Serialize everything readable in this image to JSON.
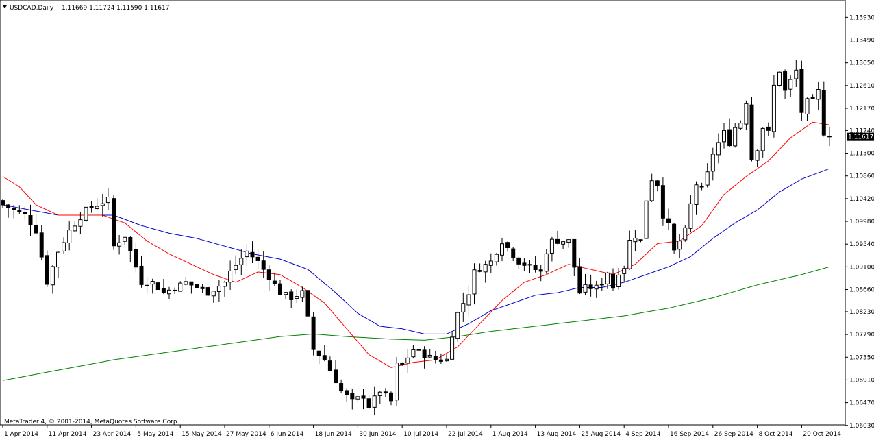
{
  "header": {
    "symbol": "USDCAD,Daily",
    "ohlc": "1.11669 1.11724 1.11590 1.11617",
    "triangle_icon": "triangle-down-icon"
  },
  "footer": {
    "copyright": "MetaTrader 4, © 2001-2014, MetaQuotes Software Corp."
  },
  "colors": {
    "background": "#ffffff",
    "ma_fast": "#ff0000",
    "ma_mid": "#0000cc",
    "ma_slow": "#008000",
    "bull_body": "#ffffff",
    "bear_body": "#000000",
    "price_tag_bg": "#000000",
    "price_tag_fg": "#ffffff"
  },
  "chart_data": {
    "type": "candlestick",
    "symbol": "USDCAD",
    "timeframe": "Daily",
    "current_price": "1.11617",
    "ylim": [
      1.0604,
      1.142
    ],
    "yticks": [
      "1.13930",
      "1.13490",
      "1.13050",
      "1.12610",
      "1.12170",
      "1.11740",
      "1.11300",
      "1.10860",
      "1.10420",
      "1.09980",
      "1.09540",
      "1.09100",
      "1.08660",
      "1.08230",
      "1.07790",
      "1.07350",
      "1.06910",
      "1.06470",
      "1.06030"
    ],
    "xtick_labels": [
      "1 Apr 2014",
      "11 Apr 2014",
      "23 Apr 2014",
      "5 May 2014",
      "15 May 2014",
      "27 May 2014",
      "6 Jun 2014",
      "18 Jun 2014",
      "30 Jun 2014",
      "10 Jul 2014",
      "22 Jul 2014",
      "1 Aug 2014",
      "13 Aug 2014",
      "25 Aug 2014",
      "4 Sep 2014",
      "16 Sep 2014",
      "26 Sep 2014",
      "8 Oct 2014",
      "20 Oct 2014"
    ],
    "xtick_index": [
      0,
      8,
      16,
      24,
      32,
      40,
      48,
      56,
      64,
      72,
      80,
      88,
      96,
      104,
      112,
      120,
      128,
      136,
      144
    ],
    "close_path": [
      [
        0,
        1.103
      ],
      [
        4,
        1.101
      ],
      [
        6,
        1.098
      ],
      [
        8,
        1.088
      ],
      [
        10,
        1.094
      ],
      [
        12,
        1.098
      ],
      [
        15,
        1.102
      ],
      [
        17,
        1.103
      ],
      [
        19,
        1.104
      ],
      [
        20,
        1.095
      ],
      [
        22,
        1.097
      ],
      [
        25,
        1.088
      ],
      [
        27,
        1.088
      ],
      [
        29,
        1.086
      ],
      [
        33,
        1.088
      ],
      [
        35,
        1.087
      ],
      [
        37,
        1.086
      ],
      [
        40,
        1.088
      ],
      [
        41,
        1.09
      ],
      [
        44,
        1.094
      ],
      [
        46,
        1.092
      ],
      [
        48,
        1.089
      ],
      [
        50,
        1.086
      ],
      [
        52,
        1.085
      ],
      [
        54,
        1.086
      ],
      [
        55,
        1.081
      ],
      [
        56,
        1.075
      ],
      [
        58,
        1.073
      ],
      [
        60,
        1.069
      ],
      [
        61,
        1.067
      ],
      [
        63,
        1.065
      ],
      [
        65,
        1.066
      ],
      [
        66,
        1.064
      ],
      [
        68,
        1.067
      ],
      [
        70,
        1.065
      ],
      [
        71,
        1.072
      ],
      [
        72,
        1.072
      ],
      [
        74,
        1.075
      ],
      [
        76,
        1.074
      ],
      [
        78,
        1.073
      ],
      [
        80,
        1.073
      ],
      [
        81,
        1.078
      ],
      [
        82,
        1.082
      ],
      [
        84,
        1.086
      ],
      [
        85,
        1.09
      ],
      [
        88,
        1.092
      ],
      [
        89,
        1.094
      ],
      [
        90,
        1.096
      ],
      [
        93,
        1.092
      ],
      [
        95,
        1.091
      ],
      [
        97,
        1.09
      ],
      [
        98,
        1.094
      ],
      [
        99,
        1.096
      ],
      [
        102,
        1.096
      ],
      [
        104,
        1.086
      ],
      [
        105,
        1.087
      ],
      [
        107,
        1.087
      ],
      [
        108,
        1.088
      ],
      [
        109,
        1.09
      ],
      [
        110,
        1.087
      ],
      [
        111,
        1.09
      ],
      [
        112,
        1.091
      ],
      [
        113,
        1.096
      ],
      [
        114,
        1.097
      ],
      [
        115,
        1.096
      ],
      [
        116,
        1.104
      ],
      [
        117,
        1.108
      ],
      [
        118,
        1.107
      ],
      [
        119,
        1.101
      ],
      [
        120,
        1.099
      ],
      [
        121,
        1.094
      ],
      [
        122,
        1.096
      ],
      [
        123,
        1.098
      ],
      [
        124,
        1.103
      ],
      [
        125,
        1.107
      ],
      [
        126,
        1.106
      ],
      [
        127,
        1.109
      ],
      [
        128,
        1.113
      ],
      [
        129,
        1.115
      ],
      [
        130,
        1.117
      ],
      [
        131,
        1.115
      ],
      [
        132,
        1.118
      ],
      [
        133,
        1.119
      ],
      [
        134,
        1.123
      ],
      [
        135,
        1.112
      ],
      [
        136,
        1.114
      ],
      [
        137,
        1.118
      ],
      [
        138,
        1.117
      ],
      [
        139,
        1.126
      ],
      [
        140,
        1.129
      ],
      [
        141,
        1.125
      ],
      [
        142,
        1.127
      ],
      [
        143,
        1.129
      ],
      [
        144,
        1.121
      ],
      [
        145,
        1.123
      ],
      [
        146,
        1.123
      ],
      [
        147,
        1.125
      ],
      [
        148,
        1.117
      ],
      [
        149,
        1.11617
      ]
    ],
    "ma_fast_path": [
      [
        0,
        1.1085
      ],
      [
        3,
        1.1065
      ],
      [
        6,
        1.103
      ],
      [
        10,
        1.101
      ],
      [
        14,
        1.101
      ],
      [
        18,
        1.101
      ],
      [
        22,
        1.0995
      ],
      [
        26,
        1.096
      ],
      [
        30,
        1.0935
      ],
      [
        34,
        1.0915
      ],
      [
        38,
        1.0895
      ],
      [
        42,
        1.088
      ],
      [
        46,
        1.09
      ],
      [
        50,
        1.0895
      ],
      [
        54,
        1.087
      ],
      [
        58,
        1.084
      ],
      [
        62,
        1.079
      ],
      [
        66,
        1.074
      ],
      [
        70,
        1.0715
      ],
      [
        74,
        1.0725
      ],
      [
        78,
        1.073
      ],
      [
        82,
        1.0755
      ],
      [
        86,
        1.08
      ],
      [
        90,
        1.0845
      ],
      [
        94,
        1.088
      ],
      [
        98,
        1.0895
      ],
      [
        102,
        1.0915
      ],
      [
        106,
        1.0905
      ],
      [
        110,
        1.0895
      ],
      [
        114,
        1.0915
      ],
      [
        118,
        1.0955
      ],
      [
        122,
        1.096
      ],
      [
        126,
        1.099
      ],
      [
        130,
        1.105
      ],
      [
        134,
        1.1085
      ],
      [
        138,
        1.1115
      ],
      [
        142,
        1.116
      ],
      [
        146,
        1.119
      ],
      [
        149,
        1.1185
      ]
    ],
    "ma_mid_path": [
      [
        0,
        1.103
      ],
      [
        5,
        1.102
      ],
      [
        10,
        1.101
      ],
      [
        15,
        1.101
      ],
      [
        20,
        1.101
      ],
      [
        25,
        1.099
      ],
      [
        30,
        1.0975
      ],
      [
        35,
        1.0965
      ],
      [
        40,
        1.095
      ],
      [
        45,
        1.0935
      ],
      [
        50,
        1.0925
      ],
      [
        55,
        1.0905
      ],
      [
        60,
        1.086
      ],
      [
        64,
        1.082
      ],
      [
        68,
        1.0795
      ],
      [
        72,
        1.079
      ],
      [
        76,
        1.078
      ],
      [
        80,
        1.078
      ],
      [
        84,
        1.08
      ],
      [
        88,
        1.0825
      ],
      [
        92,
        1.084
      ],
      [
        96,
        1.0855
      ],
      [
        100,
        1.086
      ],
      [
        104,
        1.087
      ],
      [
        108,
        1.087
      ],
      [
        112,
        1.088
      ],
      [
        116,
        1.0895
      ],
      [
        120,
        1.091
      ],
      [
        124,
        1.093
      ],
      [
        128,
        1.0965
      ],
      [
        132,
        1.0995
      ],
      [
        136,
        1.102
      ],
      [
        140,
        1.1055
      ],
      [
        144,
        1.108
      ],
      [
        149,
        1.11
      ]
    ],
    "ma_slow_path": [
      [
        0,
        1.069
      ],
      [
        10,
        1.071
      ],
      [
        20,
        1.073
      ],
      [
        30,
        1.0745
      ],
      [
        40,
        1.076
      ],
      [
        50,
        1.0775
      ],
      [
        56,
        1.078
      ],
      [
        62,
        1.0775
      ],
      [
        70,
        1.077
      ],
      [
        76,
        1.0768
      ],
      [
        82,
        1.0775
      ],
      [
        88,
        1.0785
      ],
      [
        96,
        1.0795
      ],
      [
        104,
        1.0805
      ],
      [
        112,
        1.0815
      ],
      [
        120,
        1.083
      ],
      [
        128,
        1.085
      ],
      [
        136,
        1.0875
      ],
      [
        144,
        1.0895
      ],
      [
        149,
        1.091
      ]
    ]
  }
}
